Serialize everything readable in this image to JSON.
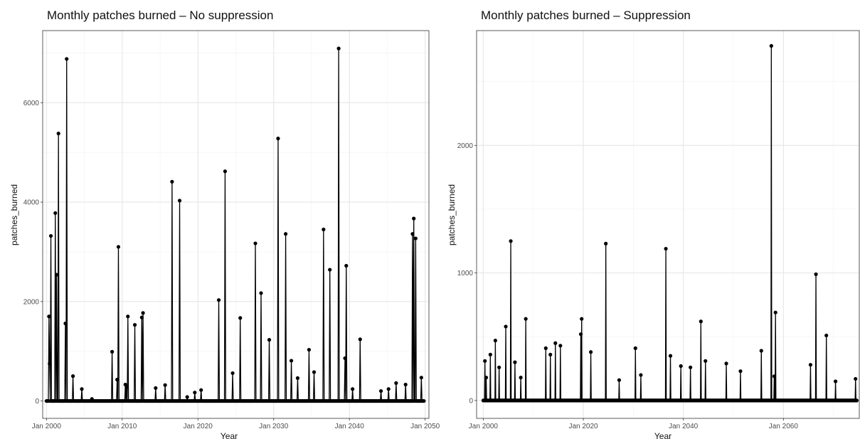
{
  "chart_data": [
    {
      "type": "line",
      "title": "Monthly patches burned – No suppression",
      "xlabel": "Year",
      "ylabel": "patches_burned",
      "x_axis": "date",
      "xlim": [
        "1999-07",
        "2050-07"
      ],
      "ylim": [
        -350,
        7450
      ],
      "x_ticks": [
        {
          "label": "Jan 2000",
          "date": "2000-01"
        },
        {
          "label": "Jan 2010",
          "date": "2010-01"
        },
        {
          "label": "Jan 2020",
          "date": "2020-01"
        },
        {
          "label": "Jan 2030",
          "date": "2030-01"
        },
        {
          "label": "Jan 2040",
          "date": "2040-01"
        },
        {
          "label": "Jan 2050",
          "date": "2050-01"
        }
      ],
      "y_ticks": [
        {
          "label": "0",
          "value": 0
        },
        {
          "label": "2000",
          "value": 2000
        },
        {
          "label": "4000",
          "value": 4000
        },
        {
          "label": "6000",
          "value": 6000
        }
      ],
      "grid": true,
      "series": [
        {
          "points": [
            [
              "2000-01",
              0
            ],
            [
              "2000-05",
              1700
            ],
            [
              "2000-06",
              750
            ],
            [
              "2000-08",
              3320
            ],
            [
              "2001-03",
              3780
            ],
            [
              "2001-05",
              2540
            ],
            [
              "2001-08",
              5380
            ],
            [
              "2002-07",
              1560
            ],
            [
              "2002-09",
              6880
            ],
            [
              "2003-07",
              500
            ],
            [
              "2004-09",
              240
            ],
            [
              "2006-01",
              40
            ],
            [
              "2008-09",
              990
            ],
            [
              "2009-05",
              430
            ],
            [
              "2009-07",
              3100
            ],
            [
              "2010-06",
              330
            ],
            [
              "2010-08",
              280
            ],
            [
              "2010-10",
              1700
            ],
            [
              "2011-09",
              1530
            ],
            [
              "2012-08",
              1680
            ],
            [
              "2012-10",
              1770
            ],
            [
              "2014-06",
              260
            ],
            [
              "2015-09",
              320
            ],
            [
              "2016-08",
              4410
            ],
            [
              "2017-08",
              4030
            ],
            [
              "2018-08",
              80
            ],
            [
              "2019-08",
              170
            ],
            [
              "2020-06",
              220
            ],
            [
              "2022-10",
              2030
            ],
            [
              "2023-08",
              4620
            ],
            [
              "2024-08",
              560
            ],
            [
              "2025-08",
              1670
            ],
            [
              "2027-08",
              3170
            ],
            [
              "2028-05",
              2170
            ],
            [
              "2029-06",
              1230
            ],
            [
              "2030-08",
              5280
            ],
            [
              "2031-08",
              3360
            ],
            [
              "2032-05",
              810
            ],
            [
              "2033-03",
              460
            ],
            [
              "2034-09",
              1030
            ],
            [
              "2035-05",
              580
            ],
            [
              "2036-08",
              3450
            ],
            [
              "2037-06",
              2640
            ],
            [
              "2038-08",
              7090
            ],
            [
              "2039-08",
              2720
            ],
            [
              "2039-06",
              860
            ],
            [
              "2040-06",
              240
            ],
            [
              "2041-06",
              1240
            ],
            [
              "2044-03",
              200
            ],
            [
              "2045-03",
              240
            ],
            [
              "2046-03",
              360
            ],
            [
              "2047-06",
              330
            ],
            [
              "2048-05",
              3360
            ],
            [
              "2048-07",
              3670
            ],
            [
              "2048-10",
              3270
            ],
            [
              "2049-07",
              470
            ],
            [
              "2049-11",
              0
            ]
          ]
        }
      ]
    },
    {
      "type": "line",
      "title": "Monthly patches burned – Suppression",
      "xlabel": "Year",
      "ylabel": "patches_burned",
      "x_axis": "date",
      "xlim": [
        "1998-09",
        "2075-03"
      ],
      "ylim": [
        -140,
        2900
      ],
      "x_ticks": [
        {
          "label": "Jan 2000",
          "date": "2000-01"
        },
        {
          "label": "Jan 2020",
          "date": "2020-01"
        },
        {
          "label": "Jan 2040",
          "date": "2040-01"
        },
        {
          "label": "Jan 2060",
          "date": "2060-01"
        }
      ],
      "y_ticks": [
        {
          "label": "0",
          "value": 0
        },
        {
          "label": "1000",
          "value": 1000
        },
        {
          "label": "2000",
          "value": 2000
        }
      ],
      "grid": true,
      "series": [
        {
          "points": [
            [
              "2000-01",
              0
            ],
            [
              "2000-05",
              310
            ],
            [
              "2000-08",
              180
            ],
            [
              "2001-06",
              360
            ],
            [
              "2002-06",
              470
            ],
            [
              "2003-03",
              260
            ],
            [
              "2004-07",
              580
            ],
            [
              "2005-07",
              1250
            ],
            [
              "2006-05",
              300
            ],
            [
              "2007-07",
              180
            ],
            [
              "2008-07",
              640
            ],
            [
              "2012-07",
              410
            ],
            [
              "2013-06",
              360
            ],
            [
              "2014-06",
              450
            ],
            [
              "2015-06",
              430
            ],
            [
              "2019-07",
              520
            ],
            [
              "2019-09",
              640
            ],
            [
              "2021-07",
              380
            ],
            [
              "2024-07",
              1230
            ],
            [
              "2027-03",
              160
            ],
            [
              "2030-06",
              410
            ],
            [
              "2031-07",
              200
            ],
            [
              "2036-07",
              1190
            ],
            [
              "2037-06",
              350
            ],
            [
              "2039-07",
              270
            ],
            [
              "2041-06",
              260
            ],
            [
              "2043-07",
              620
            ],
            [
              "2044-06",
              310
            ],
            [
              "2048-08",
              290
            ],
            [
              "2051-06",
              230
            ],
            [
              "2055-08",
              390
            ],
            [
              "2057-08",
              2780
            ],
            [
              "2058-06",
              690
            ],
            [
              "2058-03",
              190
            ],
            [
              "2065-06",
              280
            ],
            [
              "2066-07",
              990
            ],
            [
              "2068-08",
              510
            ],
            [
              "2070-06",
              150
            ],
            [
              "2074-06",
              170
            ],
            [
              "2074-09",
              0
            ]
          ]
        }
      ]
    }
  ]
}
